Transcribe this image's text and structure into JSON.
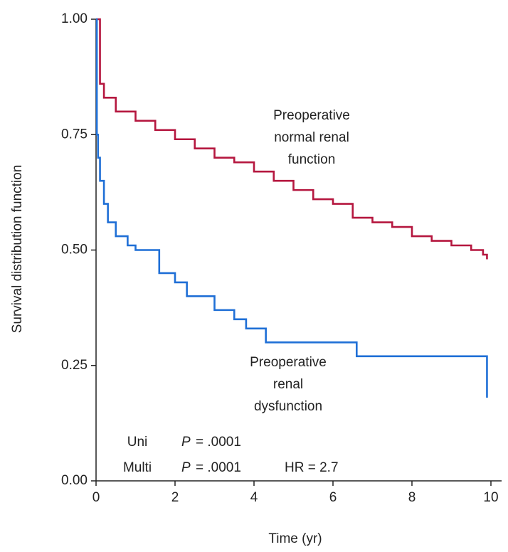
{
  "chart_data": {
    "type": "line",
    "step": true,
    "xlabel": "Time (yr)",
    "ylabel": "Survival distribution function",
    "xlim": [
      0,
      10
    ],
    "ylim": [
      0,
      1
    ],
    "xticks": [
      0,
      2,
      4,
      6,
      8,
      10
    ],
    "yticks": [
      {
        "value": 0,
        "label": "0.00"
      },
      {
        "value": 0.25,
        "label": "0.25"
      },
      {
        "value": 0.5,
        "label": "0.50"
      },
      {
        "value": 0.75,
        "label": "0.75"
      },
      {
        "value": 1,
        "label": "1.00"
      }
    ],
    "series": [
      {
        "color": "#b5173f",
        "x": [
          0,
          0.1,
          0.2,
          0.5,
          1,
          1.5,
          2,
          2.5,
          3,
          3.5,
          4,
          4.5,
          5,
          5.5,
          6,
          6.5,
          7,
          7.5,
          8,
          8.5,
          9,
          9.5,
          9.8,
          9.9
        ],
        "values": [
          1,
          0.86,
          0.83,
          0.8,
          0.78,
          0.76,
          0.74,
          0.72,
          0.7,
          0.69,
          0.67,
          0.65,
          0.63,
          0.61,
          0.6,
          0.57,
          0.56,
          0.55,
          0.53,
          0.52,
          0.51,
          0.5,
          0.49,
          0.48
        ]
      },
      {
        "color": "#1f6fd6",
        "x": [
          0,
          0.02,
          0.05,
          0.1,
          0.2,
          0.3,
          0.5,
          0.8,
          1,
          1.6,
          2,
          2.3,
          3,
          3.5,
          3.8,
          4.3,
          6.6,
          9.9
        ],
        "values": [
          1,
          0.75,
          0.7,
          0.65,
          0.6,
          0.56,
          0.53,
          0.51,
          0.5,
          0.45,
          0.43,
          0.4,
          0.37,
          0.35,
          0.33,
          0.3,
          0.27,
          0.18
        ]
      }
    ],
    "annotations": [
      {
        "lines": [
          "Preoperative",
          "normal renal",
          "function"
        ]
      },
      {
        "lines": [
          "Preoperative",
          "renal",
          "dysfunction"
        ]
      }
    ],
    "stats": [
      {
        "label": "Uni",
        "p_symbol": "P",
        "p_value": "= .0001"
      },
      {
        "label": "Multi",
        "p_symbol": "P",
        "p_value": "= .0001",
        "hr": "HR = 2.7"
      }
    ]
  }
}
